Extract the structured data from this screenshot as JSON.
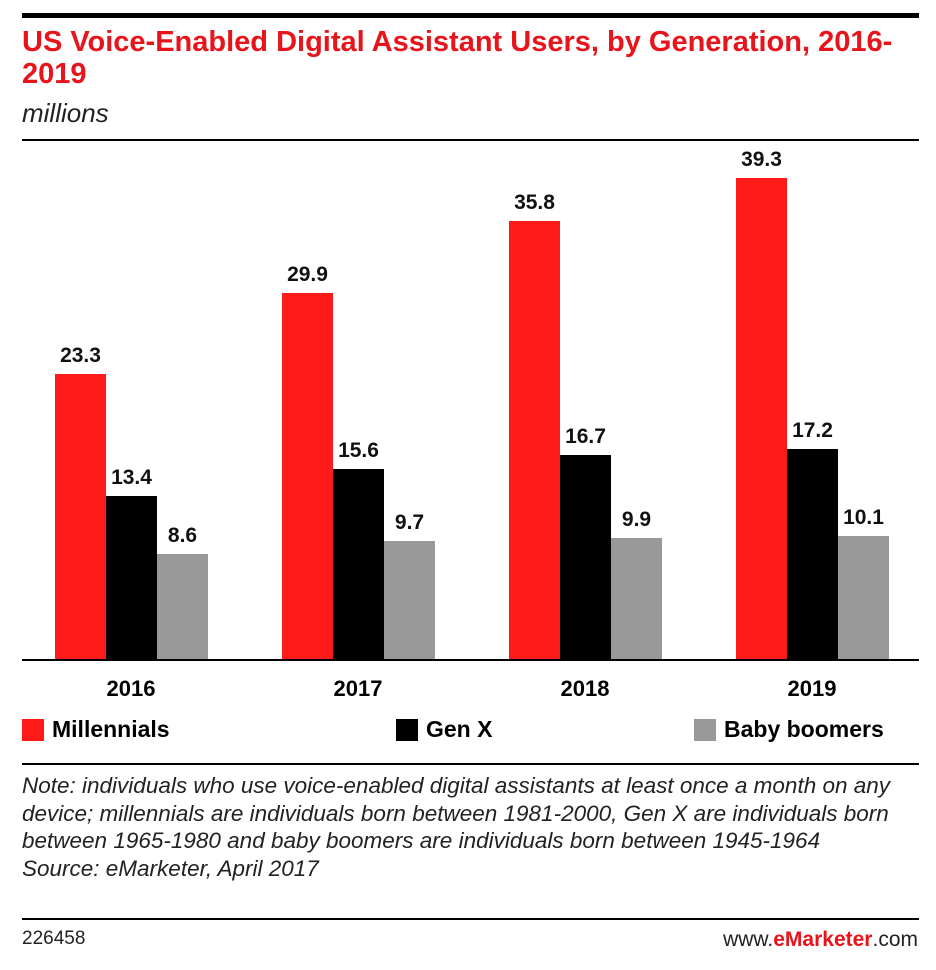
{
  "chart_data": {
    "type": "bar",
    "title": "US Voice-Enabled Digital Assistant Users, by Generation, 2016-2019",
    "subtitle": "millions",
    "categories": [
      "2016",
      "2017",
      "2018",
      "2019"
    ],
    "series": [
      {
        "name": "Millennials",
        "color": "#ff1a1a",
        "values": [
          23.3,
          29.9,
          35.8,
          39.3
        ],
        "labels": [
          "23.3",
          "29.9",
          "35.8",
          "39.3"
        ]
      },
      {
        "name": "Gen X",
        "color": "#000000",
        "values": [
          13.4,
          15.6,
          16.7,
          17.2
        ],
        "labels": [
          "13.4",
          "15.6",
          "16.7",
          "17.2"
        ]
      },
      {
        "name": "Baby boomers",
        "color": "#999999",
        "values": [
          8.6,
          9.7,
          9.9,
          10.1
        ],
        "labels": [
          "8.6",
          "9.7",
          "9.9",
          "10.1"
        ]
      }
    ],
    "ylim": [
      0,
      41
    ],
    "legend": "bottom"
  },
  "note": "Note: individuals who use voice-enabled digital assistants at least once a month on any device; millennials are individuals born between 1981-2000, Gen X are individuals born between 1965-1980 and baby boomers are individuals born between 1945-1964",
  "source": "Source: eMarketer, April 2017",
  "footer": {
    "id": "226458",
    "site_prefix": "www.",
    "site_brand": "eMarketer",
    "site_suffix": ".com"
  }
}
